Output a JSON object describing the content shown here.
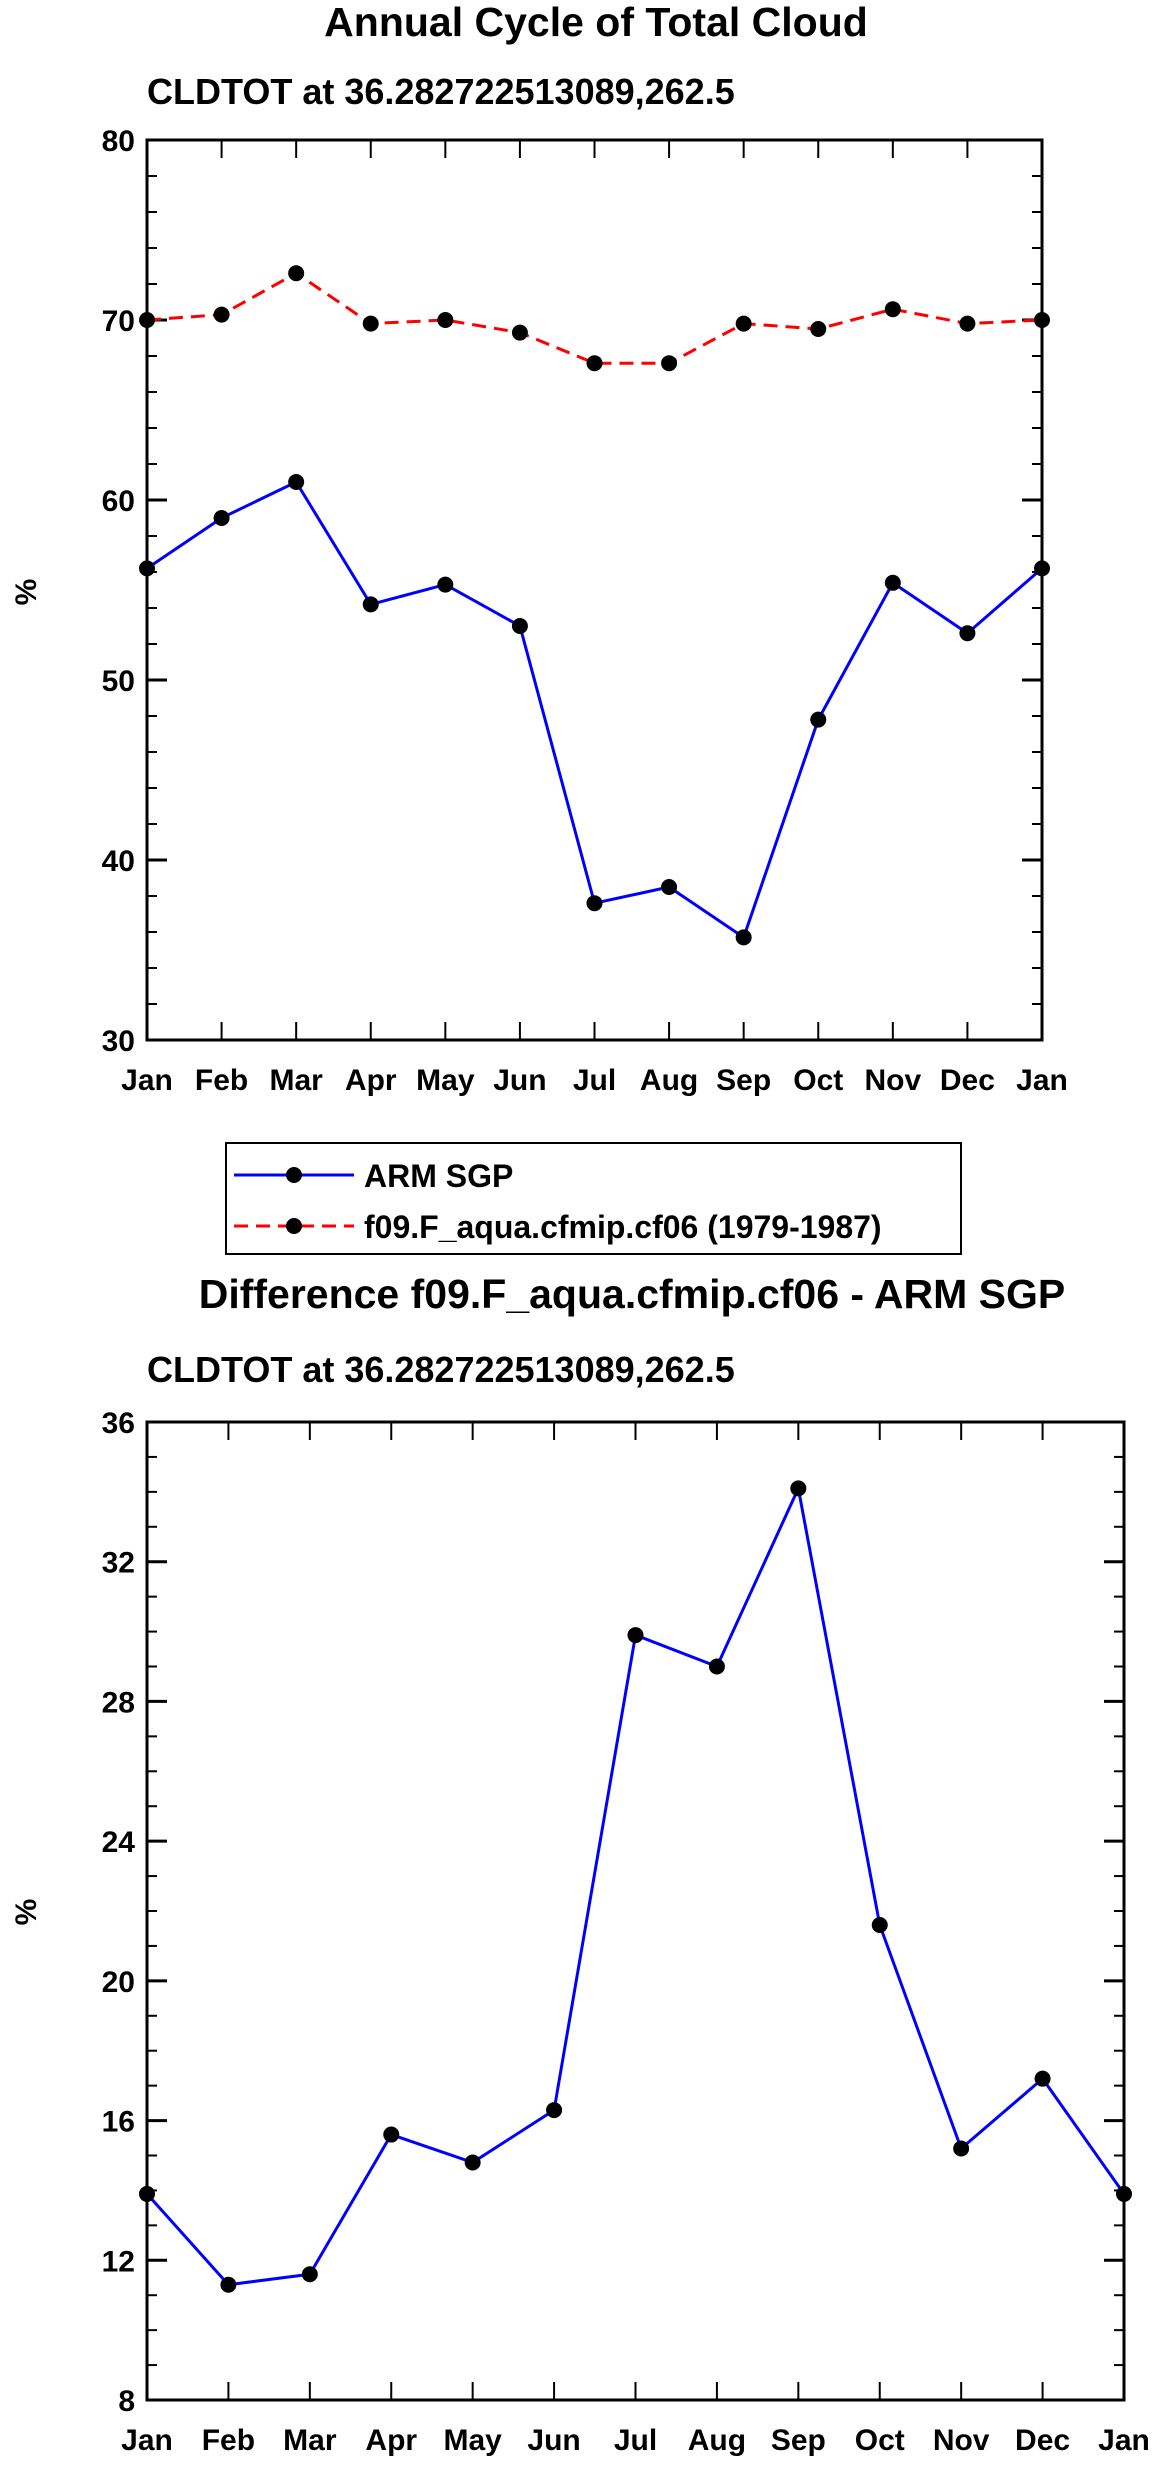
{
  "chart_data": [
    {
      "type": "line",
      "title": "Annual Cycle of Total Cloud",
      "subtitle": "CLDTOT at 36.282722513089,262.5",
      "xlabel": "",
      "ylabel": "%",
      "categories": [
        "Jan",
        "Feb",
        "Mar",
        "Apr",
        "May",
        "Jun",
        "Jul",
        "Aug",
        "Sep",
        "Oct",
        "Nov",
        "Dec",
        "Jan"
      ],
      "ylim": [
        30,
        80
      ],
      "yticks": [
        "30",
        "40",
        "50",
        "60",
        "70",
        "80"
      ],
      "series": [
        {
          "name": "ARM SGP",
          "color": "#0000ff",
          "style": "solid",
          "values": [
            56.2,
            59.0,
            61.0,
            54.2,
            55.3,
            53.0,
            37.6,
            38.5,
            35.7,
            47.8,
            55.4,
            52.6,
            56.2
          ]
        },
        {
          "name": "f09.F_aqua.cfmip.cf06 (1979-1987)",
          "color": "#ff0000",
          "style": "dashed",
          "values": [
            70.0,
            70.3,
            72.6,
            69.8,
            70.0,
            69.3,
            67.6,
            67.6,
            69.8,
            69.5,
            70.6,
            69.8,
            70.0
          ]
        }
      ],
      "legend": "below"
    },
    {
      "type": "line",
      "title": "Difference f09.F_aqua.cfmip.cf06 - ARM SGP",
      "subtitle": "CLDTOT at 36.282722513089,262.5",
      "xlabel": "",
      "ylabel": "%",
      "categories": [
        "Jan",
        "Feb",
        "Mar",
        "Apr",
        "May",
        "Jun",
        "Jul",
        "Aug",
        "Sep",
        "Oct",
        "Nov",
        "Dec",
        "Jan"
      ],
      "ylim": [
        8,
        36
      ],
      "yticks": [
        "8",
        "12",
        "16",
        "20",
        "24",
        "28",
        "32",
        "36"
      ],
      "series": [
        {
          "name": "Difference",
          "color": "#0000ff",
          "style": "solid",
          "values": [
            13.9,
            11.3,
            11.6,
            15.6,
            14.8,
            16.3,
            29.9,
            29.0,
            34.1,
            21.6,
            15.2,
            17.2,
            13.9
          ]
        }
      ]
    }
  ]
}
